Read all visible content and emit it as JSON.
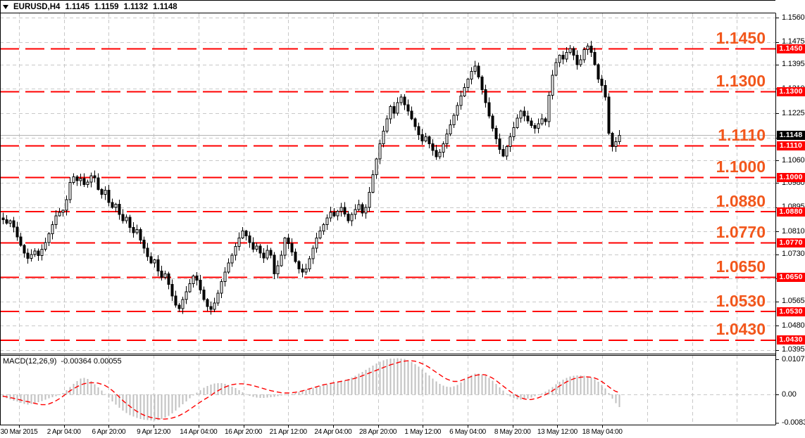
{
  "quote_bar": {
    "symbol": "EURUSD,H4",
    "open": "1.1145",
    "high": "1.1159",
    "low": "1.1132",
    "close": "1.1148"
  },
  "price_axis": {
    "ticks": [
      "1.1560",
      "1.1475",
      "1.1395",
      "1.1310",
      "1.1225",
      "1.1060",
      "1.0980",
      "1.0895",
      "1.0810",
      "1.0730",
      "1.0565",
      "1.0480",
      "1.0395"
    ]
  },
  "levels": [
    "1.1450",
    "1.1300",
    "1.1110",
    "1.1000",
    "1.0880",
    "1.0770",
    "1.0650",
    "1.0530",
    "1.0430"
  ],
  "current_price_badge": "1.1148",
  "time_axis": {
    "labels": [
      "30 Mar 2015",
      "2 Apr 04:00",
      "6 Apr 20:00",
      "9 Apr 12:00",
      "14 Apr 04:00",
      "16 Apr 20:00",
      "21 Apr 12:00",
      "24 Apr 04:00",
      "28 Apr 20:00",
      "1 May 12:00",
      "6 May 04:00",
      "8 May 20:00",
      "13 May 12:00",
      "18 May 04:00"
    ]
  },
  "macd_panel": {
    "title": "MACD(12,26,9)",
    "values": "-0.00364 0.00055",
    "ticks": [
      "0.01071",
      "0.00",
      "-0.00839"
    ]
  },
  "colors": {
    "level_line": "#ff0000",
    "level_label": "#f2571c",
    "badge_bg": "#ff0000",
    "badge_text": "#ffffff",
    "current_badge_bg": "#000000",
    "grid": "#c8c8c8",
    "candle": "#000000",
    "candle_bull_fill": "#ffffff",
    "macd_hist": "#c0c0c0",
    "macd_signal": "#ff0000",
    "current_line": "#b4b4b4",
    "frame": "#000000"
  },
  "chart_data": {
    "type": "candlestick",
    "symbol": "EURUSD",
    "timeframe": "H4",
    "ohlc_current": {
      "open": 1.1145,
      "high": 1.1159,
      "low": 1.1132,
      "close": 1.1148
    },
    "ylim_main": [
      1.038,
      1.1575
    ],
    "grid_prices": [
      1.156,
      1.1475,
      1.1395,
      1.131,
      1.1225,
      1.114,
      1.106,
      1.098,
      1.0895,
      1.081,
      1.073,
      1.0645,
      1.0565,
      1.048,
      1.0395
    ],
    "support_resistance": [
      1.145,
      1.13,
      1.111,
      1.1,
      1.088,
      1.077,
      1.065,
      1.053,
      1.043
    ],
    "current_price": 1.1148,
    "x_labels": [
      "30 Mar 2015",
      "2 Apr 04:00",
      "6 Apr 20:00",
      "9 Apr 12:00",
      "14 Apr 04:00",
      "16 Apr 20:00",
      "21 Apr 12:00",
      "24 Apr 04:00",
      "28 Apr 20:00",
      "1 May 12:00",
      "6 May 04:00",
      "8 May 20:00",
      "13 May 12:00",
      "18 May 04:00"
    ],
    "closes": [
      1.0852,
      1.084,
      1.0848,
      1.0826,
      1.0792,
      1.0762,
      1.0735,
      1.0716,
      1.073,
      1.0742,
      1.0726,
      1.0748,
      1.0772,
      1.0802,
      1.0835,
      1.0866,
      1.0878,
      1.0885,
      1.0922,
      1.0982,
      1.1002,
      1.0988,
      1.0996,
      1.0975,
      1.0984,
      1.1006,
      1.0998,
      1.0958,
      1.094,
      1.0955,
      1.0912,
      1.0895,
      1.0906,
      1.087,
      1.0848,
      1.086,
      1.0825,
      1.0806,
      1.0818,
      1.078,
      1.0752,
      1.0722,
      1.07,
      1.0712,
      1.0672,
      1.065,
      1.0662,
      1.0625,
      1.0585,
      1.0552,
      1.054,
      1.0572,
      1.06,
      1.0628,
      1.0655,
      1.064,
      1.0605,
      1.0572,
      1.0548,
      1.0538,
      1.056,
      1.0595,
      1.0635,
      1.0668,
      1.07,
      1.0728,
      1.0758,
      1.0788,
      1.0812,
      1.0795,
      1.0772,
      1.0748,
      1.076,
      1.0735,
      1.0718,
      1.0745,
      1.0728,
      1.0662,
      1.069,
      1.0728,
      1.0788,
      1.0768,
      1.0738,
      1.0705,
      1.068,
      1.0668,
      1.068,
      1.0715,
      1.0752,
      1.0788,
      1.0812,
      1.0835,
      1.0858,
      1.0878,
      1.0865,
      1.0882,
      1.0895,
      1.0872,
      1.0848,
      1.087,
      1.0888,
      1.0905,
      1.0875,
      1.0895,
      1.0948,
      1.101,
      1.1065,
      1.1118,
      1.1162,
      1.1205,
      1.1248,
      1.1225,
      1.1262,
      1.1282,
      1.1255,
      1.1232,
      1.1205,
      1.1178,
      1.115,
      1.1128,
      1.1142,
      1.1118,
      1.1095,
      1.1072,
      1.1088,
      1.1118,
      1.1152,
      1.1185,
      1.1218,
      1.1252,
      1.1285,
      1.1315,
      1.1345,
      1.1372,
      1.139,
      1.1352,
      1.1308,
      1.1262,
      1.1215,
      1.1172,
      1.1135,
      1.1098,
      1.1075,
      1.1108,
      1.1142,
      1.1175,
      1.1208,
      1.1232,
      1.1215,
      1.1198,
      1.1182,
      1.1172,
      1.1188,
      1.1205,
      1.1195,
      1.1288,
      1.1358,
      1.1402,
      1.1428,
      1.1415,
      1.1438,
      1.1452,
      1.1428,
      1.1395,
      1.1412,
      1.1448,
      1.146,
      1.1438,
      1.1395,
      1.1345,
      1.1322,
      1.1282,
      1.1155,
      1.1108,
      1.1125,
      1.1148
    ],
    "macd": {
      "params": [
        12,
        26,
        9
      ],
      "current_main": -0.00364,
      "current_signal": 0.00055,
      "ylim": [
        -0.00839,
        0.01071
      ],
      "hist": [
        -0.0008,
        -0.0011,
        -0.0014,
        -0.0018,
        -0.0021,
        -0.0025,
        -0.0028,
        -0.003,
        -0.0028,
        -0.0026,
        -0.0023,
        -0.0019,
        -0.0015,
        -0.0011,
        -0.0008,
        -0.0005,
        -0.0002,
        0.0004,
        0.0012,
        0.0022,
        0.0031,
        0.0039,
        0.0046,
        0.0048,
        0.0045,
        0.0039,
        0.003,
        0.0021,
        0.0011,
        0.0001,
        -0.0009,
        -0.002,
        -0.003,
        -0.0039,
        -0.0047,
        -0.0054,
        -0.006,
        -0.0065,
        -0.0069,
        -0.0072,
        -0.0074,
        -0.0075,
        -0.0076,
        -0.0076,
        -0.0075,
        -0.0072,
        -0.0068,
        -0.0062,
        -0.0055,
        -0.0047,
        -0.0038,
        -0.0029,
        -0.002,
        -0.0011,
        -0.0003,
        0.0005,
        0.0012,
        0.0019,
        0.0025,
        0.0029,
        0.0032,
        0.0033,
        0.0033,
        0.0031,
        0.0028,
        0.0023,
        0.0018,
        0.0012,
        0.0006,
        0.0001,
        -0.0004,
        -0.0007,
        -0.0009,
        -0.001,
        -0.001,
        -0.0009,
        -0.0008,
        -0.0007,
        -0.0005,
        -0.0003,
        -0.0001,
        0.0,
        0.0001,
        0.0004,
        0.0007,
        0.001,
        0.0013,
        0.0016,
        0.0019,
        0.0022,
        0.0025,
        0.0027,
        0.0029,
        0.0031,
        0.0033,
        0.0035,
        0.0038,
        0.0041,
        0.0045,
        0.0049,
        0.0054,
        0.006,
        0.0066,
        0.0072,
        0.0078,
        0.0084,
        0.009,
        0.0095,
        0.0099,
        0.0102,
        0.0104,
        0.0105,
        0.0106,
        0.0105,
        0.0103,
        0.0099,
        0.0094,
        0.0088,
        0.0081,
        0.0073,
        0.0064,
        0.0055,
        0.0046,
        0.0038,
        0.0031,
        0.0026,
        0.0023,
        0.0022,
        0.0024,
        0.0028,
        0.0035,
        0.0043,
        0.005,
        0.0056,
        0.006,
        0.006,
        0.0058,
        0.0054,
        0.0048,
        0.004,
        0.0031,
        0.0021,
        0.0011,
        0.0002,
        -0.0006,
        -0.0011,
        -0.0014,
        -0.0015,
        -0.0014,
        -0.0012,
        -0.0009,
        -0.0005,
        -0.0001,
        0.0003,
        0.0008,
        0.0014,
        0.0022,
        0.003,
        0.0037,
        0.0043,
        0.0048,
        0.0052,
        0.0054,
        0.0055,
        0.0055,
        0.0054,
        0.0052,
        0.0049,
        0.0044,
        0.0037,
        0.0028,
        0.0017,
        0.0004,
        -0.0012,
        -0.0026,
        -0.00364
      ],
      "signal": [
        -0.0005,
        -0.0007,
        -0.0009,
        -0.0011,
        -0.0014,
        -0.0016,
        -0.0019,
        -0.0021,
        -0.0023,
        -0.0026,
        -0.0028,
        -0.003,
        -0.003,
        -0.0028,
        -0.0024,
        -0.0019,
        -0.0013,
        -0.0006,
        0.0002,
        0.001,
        0.0016,
        0.0022,
        0.0027,
        0.0031,
        0.0033,
        0.0034,
        0.0034,
        0.0033,
        0.003,
        0.0026,
        0.002,
        0.0012,
        0.0003,
        -0.0007,
        -0.0017,
        -0.0026,
        -0.0034,
        -0.0042,
        -0.0049,
        -0.0055,
        -0.006,
        -0.0064,
        -0.0067,
        -0.0069,
        -0.0071,
        -0.0072,
        -0.0072,
        -0.0071,
        -0.0069,
        -0.0066,
        -0.0062,
        -0.0057,
        -0.0051,
        -0.0044,
        -0.0037,
        -0.003,
        -0.0023,
        -0.0016,
        -0.001,
        -0.0004,
        0.0004,
        0.001,
        0.0016,
        0.0021,
        0.0025,
        0.0028,
        0.003,
        0.0031,
        0.0031,
        0.003,
        0.0028,
        0.0026,
        0.0023,
        0.002,
        0.0017,
        0.0014,
        0.0011,
        0.0009,
        0.0007,
        0.0005,
        0.0004,
        0.0004,
        0.0005,
        0.0006,
        0.0008,
        0.001,
        0.0013,
        0.0016,
        0.0019,
        0.0022,
        0.0025,
        0.0028,
        0.003,
        0.0032,
        0.0034,
        0.0036,
        0.0038,
        0.004,
        0.0042,
        0.0044,
        0.0047,
        0.005,
        0.0054,
        0.0058,
        0.0062,
        0.0066,
        0.007,
        0.0074,
        0.0078,
        0.0082,
        0.0086,
        0.0089,
        0.0092,
        0.0095,
        0.0097,
        0.0098,
        0.0098,
        0.0097,
        0.0094,
        0.009,
        0.0085,
        0.0079,
        0.0072,
        0.0065,
        0.0058,
        0.0051,
        0.0045,
        0.0041,
        0.0038,
        0.0038,
        0.004,
        0.0044,
        0.0048,
        0.0052,
        0.0055,
        0.0057,
        0.0058,
        0.0057,
        0.0053,
        0.0048,
        0.0041,
        0.0033,
        0.0025,
        0.0017,
        0.0009,
        0.0002,
        -0.0004,
        -0.0009,
        -0.0013,
        -0.0015,
        -0.0015,
        -0.0013,
        -0.001,
        -0.0006,
        -0.0001,
        0.0004,
        0.001,
        0.0017,
        0.0024,
        0.003,
        0.0036,
        0.0041,
        0.0045,
        0.0048,
        0.005,
        0.0051,
        0.0051,
        0.005,
        0.0048,
        0.0044,
        0.0038,
        0.0031,
        0.0023,
        0.0015,
        0.0009,
        0.00055
      ]
    }
  }
}
